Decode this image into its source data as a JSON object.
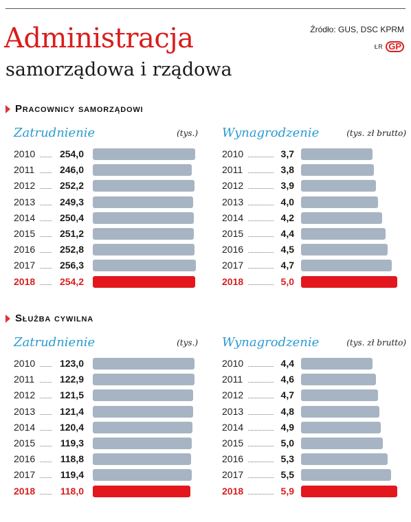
{
  "header": {
    "title": "Administracja",
    "subtitle": "samorządowa i rządowa",
    "source": "Źródło: GUS, DSC KPRM",
    "credit": "ŁR",
    "logo": "GP"
  },
  "sections": [
    {
      "title": "Pracownicy samorządowi"
    },
    {
      "title": "Służba cywilna"
    }
  ],
  "chart_data": [
    {
      "type": "bar",
      "orientation": "horizontal",
      "section": "Pracownicy samorządowi",
      "title": "Zatrudnienie",
      "unit": "(tys.)",
      "categories": [
        "2010",
        "2011",
        "2012",
        "2013",
        "2014",
        "2015",
        "2016",
        "2017",
        "2018"
      ],
      "values": [
        254.0,
        246.0,
        252.2,
        249.3,
        250.4,
        251.2,
        252.8,
        256.3,
        254.2
      ],
      "labels": [
        "254,0",
        "246,0",
        "252,2",
        "249,3",
        "250,4",
        "251,2",
        "252,8",
        "256,3",
        "254,2"
      ],
      "highlight": "2018",
      "highlight_color": "#e3171e",
      "bar_color": "#a7b4c3"
    },
    {
      "type": "bar",
      "orientation": "horizontal",
      "section": "Pracownicy samorządowi",
      "title": "Wynagrodzenie",
      "unit": "(tys. zł brutto)",
      "categories": [
        "2010",
        "2011",
        "2012",
        "2013",
        "2014",
        "2015",
        "2016",
        "2017",
        "2018"
      ],
      "values": [
        3.7,
        3.8,
        3.9,
        4.0,
        4.2,
        4.4,
        4.5,
        4.7,
        5.0
      ],
      "labels": [
        "3,7",
        "3,8",
        "3,9",
        "4,0",
        "4,2",
        "4,4",
        "4,5",
        "4,7",
        "5,0"
      ],
      "highlight": "2018",
      "highlight_color": "#e3171e",
      "bar_color": "#a7b4c3"
    },
    {
      "type": "bar",
      "orientation": "horizontal",
      "section": "Służba cywilna",
      "title": "Zatrudnienie",
      "unit": "(tys.)",
      "categories": [
        "2010",
        "2011",
        "2012",
        "2013",
        "2014",
        "2015",
        "2016",
        "2017",
        "2018"
      ],
      "values": [
        123.0,
        122.9,
        121.5,
        121.4,
        120.4,
        119.3,
        118.8,
        119.4,
        118.0
      ],
      "labels": [
        "123,0",
        "122,9",
        "121,5",
        "121,4",
        "120,4",
        "119,3",
        "118,8",
        "119,4",
        "118,0"
      ],
      "highlight": "2018",
      "highlight_color": "#e3171e",
      "bar_color": "#a7b4c3"
    },
    {
      "type": "bar",
      "orientation": "horizontal",
      "section": "Służba cywilna",
      "title": "Wynagrodzenie",
      "unit": "(tys. zł brutto)",
      "categories": [
        "2010",
        "2011",
        "2012",
        "2013",
        "2014",
        "2015",
        "2016",
        "2017",
        "2018"
      ],
      "values": [
        4.4,
        4.6,
        4.7,
        4.8,
        4.9,
        5.0,
        5.3,
        5.5,
        5.9
      ],
      "labels": [
        "4,4",
        "4,6",
        "4,7",
        "4,8",
        "4,9",
        "5,0",
        "5,3",
        "5,5",
        "5,9"
      ],
      "highlight": "2018",
      "highlight_color": "#e3171e",
      "bar_color": "#a7b4c3"
    }
  ]
}
